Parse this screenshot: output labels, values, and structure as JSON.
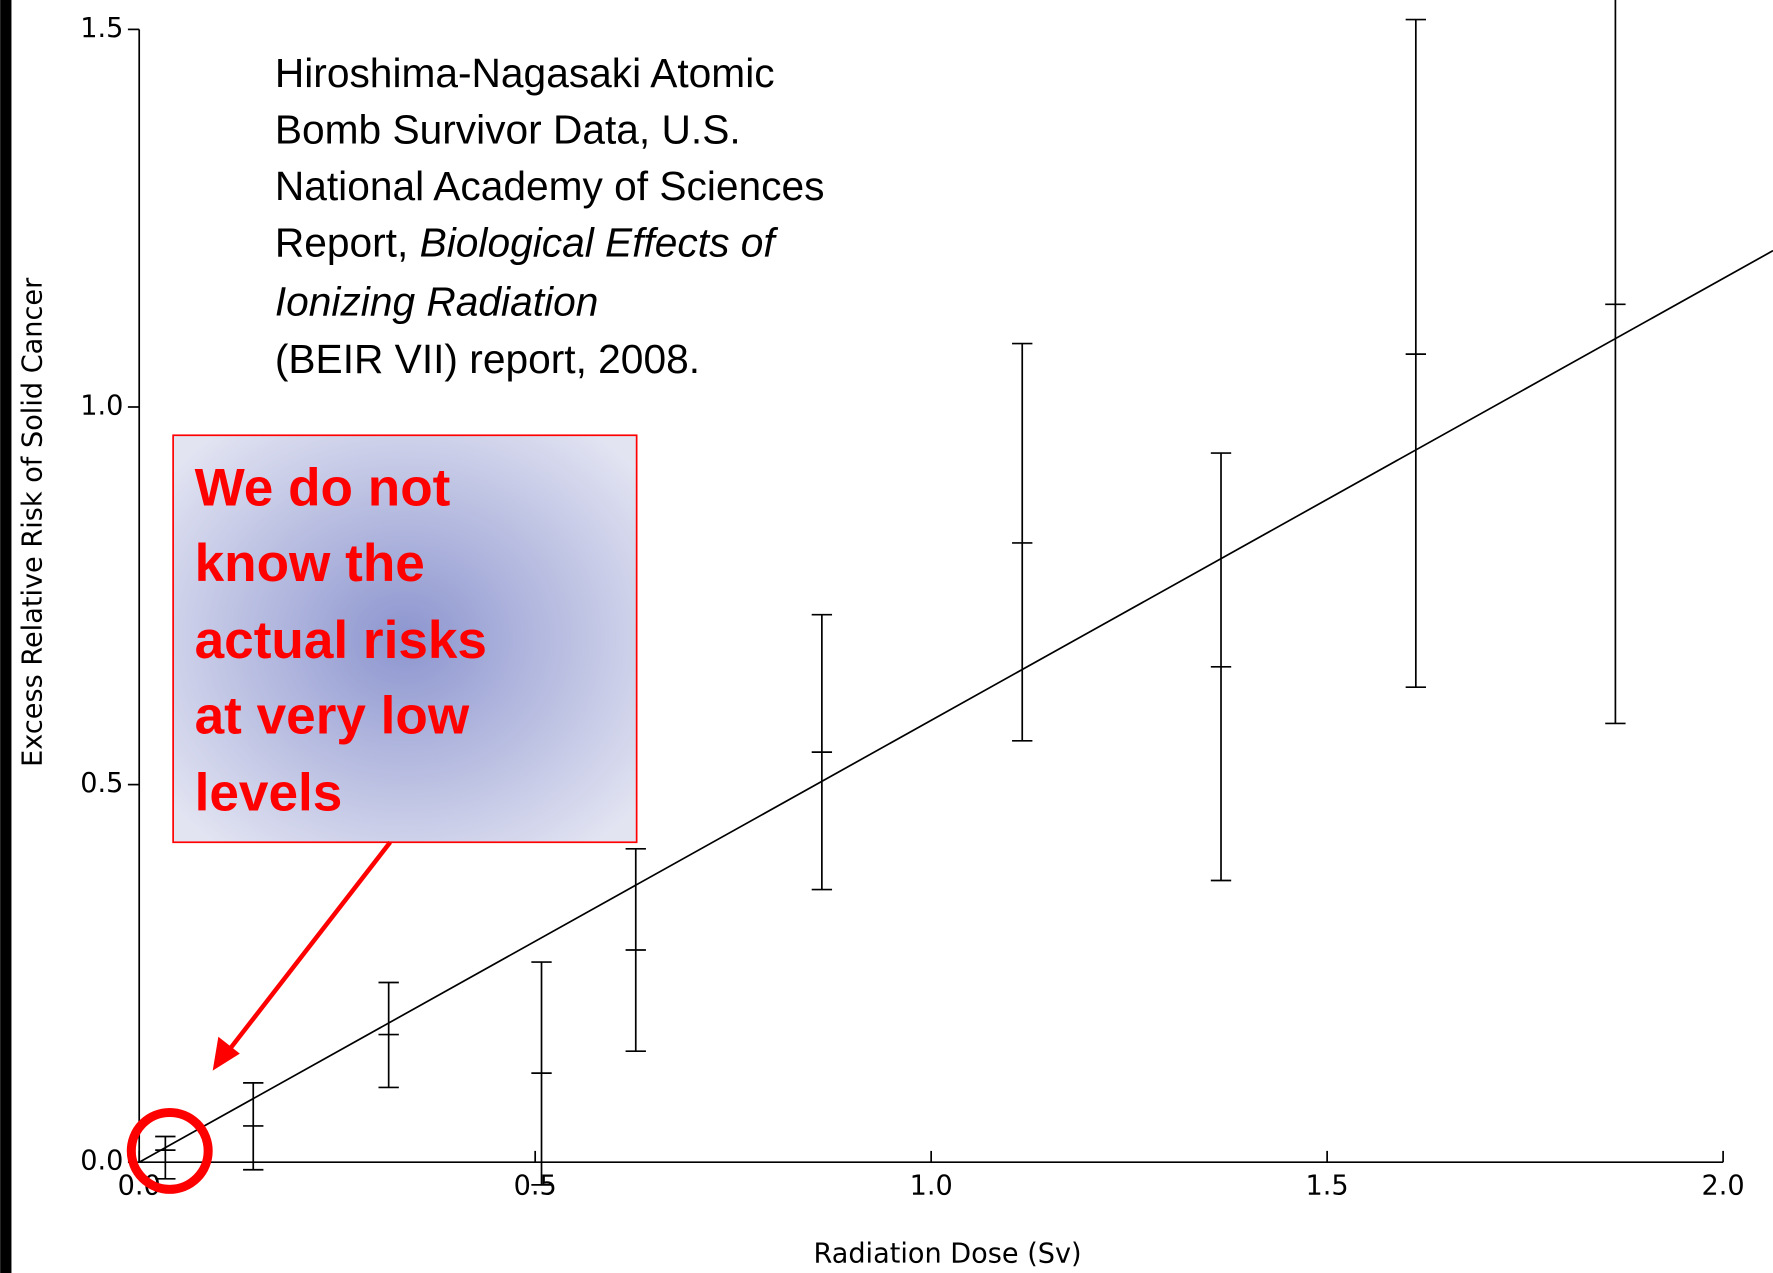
{
  "chart_data": {
    "type": "errorbar",
    "x_label": "Radiation Dose (Sv)",
    "y_label": "Excess Relative Risk of Solid Cancer",
    "xlim": [
      0,
      2.0
    ],
    "ylim": [
      0,
      1.5
    ],
    "xticks": [
      {
        "value": 0,
        "label": "0.0"
      },
      {
        "value": 0.5,
        "label": "0.5"
      },
      {
        "value": 1,
        "label": "1.0"
      },
      {
        "value": 1.5,
        "label": "1.5"
      },
      {
        "value": 2,
        "label": "2.0"
      }
    ],
    "yticks": [
      {
        "value": 0,
        "label": "0.0"
      },
      {
        "value": 0.5,
        "label": "0.5"
      },
      {
        "value": 1,
        "label": "1.0"
      },
      {
        "value": 1.5,
        "label": "1.5"
      }
    ],
    "color": "#000000",
    "points": {
      "x": [
        0.033,
        0.144,
        0.315,
        0.508,
        0.627,
        0.862,
        1.115,
        1.366,
        1.612,
        1.864
      ],
      "values": [
        0.016,
        0.048,
        0.169,
        0.118,
        0.281,
        0.543,
        0.82,
        0.656,
        1.07,
        1.136
      ],
      "lower": [
        -0.022,
        -0.01,
        0.099,
        -0.03,
        0.147,
        0.361,
        0.558,
        0.373,
        0.629,
        0.581
      ],
      "upper": [
        0.034,
        0.105,
        0.238,
        0.265,
        0.415,
        0.725,
        1.084,
        0.939,
        1.513,
        1.6
      ]
    },
    "fit": {
      "x": [
        0,
        2.063
      ],
      "y": [
        0,
        1.207
      ]
    },
    "citation": [
      "Hiroshima-Nagasaki Atomic",
      "Bomb Survivor Data, U.S.",
      "National Academy of Sciences",
      "Report, ",
      "Biological Effects of",
      "Ionizing Radiation",
      "(BEIR VII) report, 2008."
    ],
    "callout": {
      "lines": [
        "We do not",
        "know the",
        "actual risks",
        "at very low",
        "levels"
      ],
      "color": "#ff0000"
    }
  }
}
